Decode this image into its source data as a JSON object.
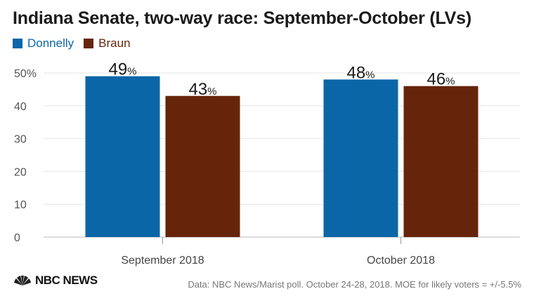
{
  "chart_data": {
    "type": "bar",
    "title": "Indiana Senate, two-way race: September-October (LVs)",
    "categories": [
      "September 2018",
      "October 2018"
    ],
    "series": [
      {
        "name": "Donnelly",
        "values": [
          49,
          48
        ],
        "color": "#0b66a8"
      },
      {
        "name": "Braun",
        "values": [
          43,
          46
        ],
        "color": "#66250a"
      }
    ],
    "ylim": [
      0,
      50
    ],
    "yticks": [
      0,
      10,
      20,
      30,
      40,
      50
    ],
    "ytick_labels": [
      "0",
      "10",
      "20",
      "30",
      "40",
      "50%"
    ],
    "value_suffix": "%",
    "grid": true,
    "legend": "top-left"
  },
  "footer": {
    "source": "Data: NBC News/Marist poll. October 24-28, 2018. MOE for likely voters = +/-5.5%",
    "logo_text": "NBC NEWS"
  }
}
